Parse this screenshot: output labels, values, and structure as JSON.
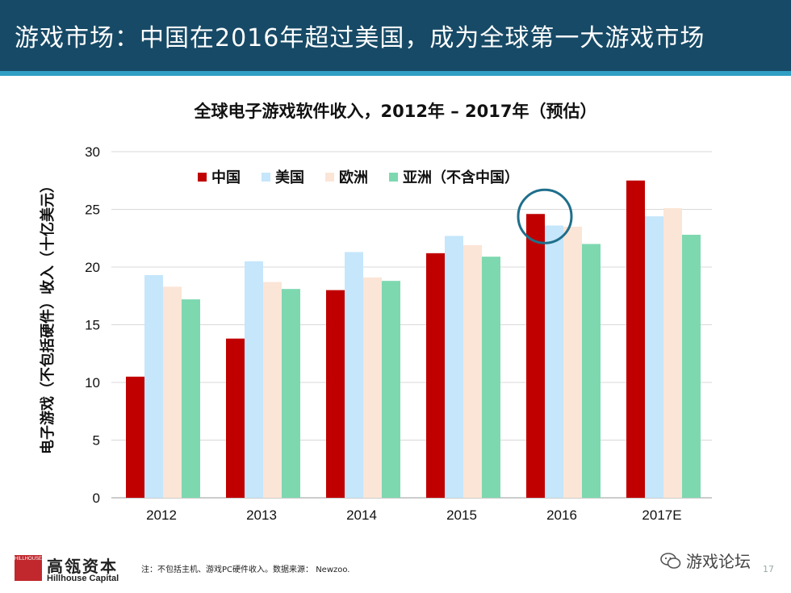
{
  "header": {
    "title": "游戏市场：中国在2016年超过美国，成为全球第一大游戏市场"
  },
  "colors": {
    "header_bg": "#174a66",
    "accent_line": "#2f9fc4",
    "highlight_circle": "#1f6f8b"
  },
  "chart_data": {
    "type": "bar",
    "title": "全球电子游戏软件收入，2012年 – 2017年（预估）",
    "xlabel": "",
    "ylabel": "电子游戏（不包括硬件）收入（十亿美元）",
    "ylim": [
      0,
      30
    ],
    "yticks": [
      0,
      5,
      10,
      15,
      20,
      25,
      30
    ],
    "grid": true,
    "legend_position": "top-left",
    "categories": [
      "2012",
      "2013",
      "2014",
      "2015",
      "2016",
      "2017E"
    ],
    "series": [
      {
        "name": "中国",
        "color": "#c00000",
        "values": [
          10.5,
          13.8,
          18.0,
          21.2,
          24.6,
          27.5
        ]
      },
      {
        "name": "美国",
        "color": "#c5e6fb",
        "values": [
          19.3,
          20.5,
          21.3,
          22.7,
          23.6,
          24.4
        ]
      },
      {
        "name": "欧洲",
        "color": "#fbe5d6",
        "values": [
          18.3,
          18.7,
          19.1,
          21.9,
          23.5,
          25.1
        ]
      },
      {
        "name": "亚洲（不含中国）",
        "color": "#7dd8b0",
        "values": [
          17.2,
          18.1,
          18.8,
          20.9,
          22.0,
          22.8
        ]
      }
    ],
    "annotation": {
      "type": "circle",
      "category": "2016",
      "note": "highlight"
    }
  },
  "footer": {
    "company_cn": "高瓴资本",
    "company_en": "Hillhouse Capital",
    "logo_text": "HILLHOUSE",
    "note": "注：不包括主机、游戏PC硬件收入。数据来源： Newzoo.",
    "watermark": "游戏论坛",
    "page_number": "17"
  }
}
